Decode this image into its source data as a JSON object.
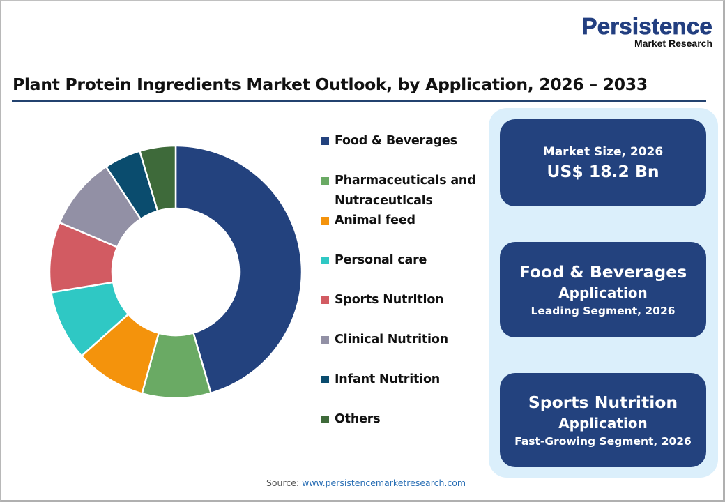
{
  "logo": {
    "brand": "Persistence",
    "tagline": "Market Research"
  },
  "title": "Plant Protein Ingredients Market Outlook, by Application, 2026 – 2033",
  "legend": [
    {
      "label": "Food & Beverages",
      "color": "#23427e"
    },
    {
      "label": "Pharmaceuticals and Nutraceuticals",
      "line1": "Pharmaceuticals and",
      "line2": "Nutraceuticals",
      "color": "#6aaa64"
    },
    {
      "label": "Animal feed",
      "color": "#f4930c"
    },
    {
      "label": "Personal care",
      "color": "#2fc8c4"
    },
    {
      "label": "Sports Nutrition",
      "color": "#d25b62"
    },
    {
      "label": "Clinical Nutrition",
      "color": "#9290a5"
    },
    {
      "label": "Infant Nutrition",
      "color": "#0a4c6e"
    },
    {
      "label": "Others",
      "color": "#3e6a3a"
    }
  ],
  "cards": {
    "market_size": {
      "label": "Market Size, 2026",
      "value": "US$ 18.2 Bn"
    },
    "leading": {
      "segment": "Food & Beverages",
      "type": "Application",
      "caption": "Leading Segment, 2026"
    },
    "fastest": {
      "segment": "Sports Nutrition",
      "type": "Application",
      "caption": "Fast-Growing Segment, 2026"
    }
  },
  "source": {
    "label": "Source:",
    "link": "www.persistencemarketresearch.com"
  },
  "chart_data": {
    "type": "pie",
    "subtype": "donut",
    "title": "Plant Protein Ingredients Market Outlook, by Application, 2026 – 2033",
    "categories": [
      "Food & Beverages",
      "Pharmaceuticals and Nutraceuticals",
      "Animal feed",
      "Personal care",
      "Sports Nutrition",
      "Clinical Nutrition",
      "Infant Nutrition",
      "Others"
    ],
    "values": [
      45.5,
      8.8,
      9.1,
      9.0,
      9.0,
      9.3,
      4.7,
      4.6
    ],
    "unit": "% share (estimated from slice angles)",
    "colors": [
      "#23427e",
      "#6aaa64",
      "#f4930c",
      "#2fc8c4",
      "#d25b62",
      "#9290a5",
      "#0a4c6e",
      "#3e6a3a"
    ],
    "legend_position": "right",
    "start_angle": "12 o'clock, clockwise"
  }
}
